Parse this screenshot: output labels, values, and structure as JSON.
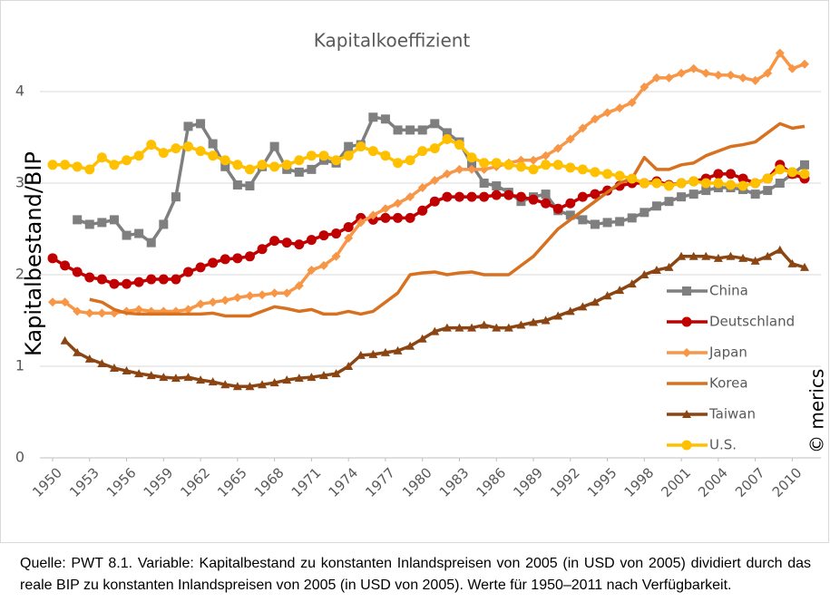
{
  "chart_data": {
    "type": "line",
    "title": "Kapitalkoeffizient",
    "y_label": "Kapitalbestand/BIP",
    "watermark": "© merics",
    "source": "Quelle: PWT 8.1. Variable: Kapitalbestand zu konstanten Inlandspreisen von 2005 (in USD von 2005) dividiert durch das reale BIP zu konstanten Inlandspreisen von 2005 (in USD von 2005). Werte für 1950–2011 nach Verfügbarkeit.",
    "x": [
      1950,
      1951,
      1952,
      1953,
      1954,
      1955,
      1956,
      1957,
      1958,
      1959,
      1960,
      1961,
      1962,
      1963,
      1964,
      1965,
      1966,
      1967,
      1968,
      1969,
      1970,
      1971,
      1972,
      1973,
      1974,
      1975,
      1976,
      1977,
      1978,
      1979,
      1980,
      1981,
      1982,
      1983,
      1984,
      1985,
      1986,
      1987,
      1988,
      1989,
      1990,
      1991,
      1992,
      1993,
      1994,
      1995,
      1996,
      1997,
      1998,
      1999,
      2000,
      2001,
      2002,
      2003,
      2004,
      2005,
      2006,
      2007,
      2008,
      2009,
      2010,
      2011
    ],
    "xlim": [
      1950,
      2011
    ],
    "xticks": [
      1950,
      1953,
      1956,
      1959,
      1962,
      1965,
      1968,
      1971,
      1974,
      1977,
      1980,
      1983,
      1986,
      1989,
      1992,
      1995,
      1998,
      2001,
      2004,
      2007,
      2010
    ],
    "ylim": [
      0,
      4.5
    ],
    "yticks": [
      0,
      1,
      2,
      3,
      4
    ],
    "grid": true,
    "legend": "right",
    "series": [
      {
        "name": "China",
        "color": "#7f7f7f",
        "marker": "square",
        "values": [
          null,
          null,
          2.6,
          2.55,
          2.57,
          2.6,
          2.43,
          2.45,
          2.35,
          2.55,
          2.85,
          3.62,
          3.65,
          3.43,
          3.18,
          2.98,
          2.97,
          3.18,
          3.4,
          3.15,
          3.12,
          3.15,
          3.25,
          3.22,
          3.4,
          3.42,
          3.72,
          3.7,
          3.58,
          3.58,
          3.58,
          3.65,
          3.55,
          3.45,
          3.2,
          3.0,
          2.97,
          2.9,
          2.8,
          2.85,
          2.88,
          2.7,
          2.65,
          2.6,
          2.55,
          2.57,
          2.58,
          2.62,
          2.68,
          2.75,
          2.8,
          2.85,
          2.88,
          2.92,
          2.95,
          2.95,
          2.93,
          2.88,
          2.92,
          3.0,
          3.1,
          3.2
        ]
      },
      {
        "name": "Deutschland",
        "color": "#c00000",
        "marker": "circle",
        "values": [
          2.18,
          2.1,
          2.03,
          1.97,
          1.95,
          1.9,
          1.9,
          1.92,
          1.95,
          1.95,
          1.95,
          2.03,
          2.08,
          2.13,
          2.17,
          2.18,
          2.2,
          2.28,
          2.37,
          2.35,
          2.33,
          2.38,
          2.43,
          2.45,
          2.52,
          2.62,
          2.6,
          2.62,
          2.62,
          2.62,
          2.7,
          2.8,
          2.85,
          2.85,
          2.85,
          2.85,
          2.87,
          2.87,
          2.85,
          2.82,
          2.78,
          2.72,
          2.78,
          2.85,
          2.88,
          2.92,
          2.97,
          3.0,
          3.0,
          3.02,
          2.98,
          3.0,
          3.02,
          3.05,
          3.1,
          3.1,
          3.05,
          3.0,
          3.05,
          3.2,
          3.1,
          3.05
        ]
      },
      {
        "name": "Japan",
        "color": "#f79646",
        "marker": "diamond",
        "values": [
          1.7,
          1.7,
          1.6,
          1.58,
          1.58,
          1.58,
          1.6,
          1.62,
          1.6,
          1.6,
          1.6,
          1.62,
          1.68,
          1.7,
          1.72,
          1.75,
          1.77,
          1.78,
          1.8,
          1.8,
          1.88,
          2.05,
          2.1,
          2.2,
          2.4,
          2.57,
          2.65,
          2.72,
          2.78,
          2.85,
          2.95,
          3.03,
          3.1,
          3.15,
          3.15,
          3.15,
          3.18,
          3.22,
          3.25,
          3.25,
          3.3,
          3.38,
          3.48,
          3.6,
          3.7,
          3.77,
          3.82,
          3.88,
          4.05,
          4.15,
          4.15,
          4.2,
          4.25,
          4.2,
          4.18,
          4.18,
          4.15,
          4.12,
          4.2,
          4.42,
          4.25,
          4.3
        ]
      },
      {
        "name": "Korea",
        "color": "#d8711f",
        "marker": "none",
        "values": [
          null,
          null,
          null,
          1.73,
          1.7,
          1.62,
          1.58,
          1.57,
          1.57,
          1.57,
          1.57,
          1.57,
          1.57,
          1.58,
          1.55,
          1.55,
          1.55,
          1.6,
          1.65,
          1.63,
          1.6,
          1.62,
          1.57,
          1.57,
          1.6,
          1.57,
          1.6,
          1.7,
          1.8,
          2.0,
          2.02,
          2.03,
          2.0,
          2.02,
          2.03,
          2.0,
          2.0,
          2.0,
          2.1,
          2.2,
          2.35,
          2.5,
          2.6,
          2.7,
          2.8,
          2.9,
          3.0,
          3.05,
          3.28,
          3.15,
          3.15,
          3.2,
          3.22,
          3.3,
          3.35,
          3.4,
          3.42,
          3.45,
          3.55,
          3.65,
          3.6,
          3.62
        ]
      },
      {
        "name": "Taiwan",
        "color": "#8b4513",
        "marker": "triangle",
        "values": [
          null,
          1.28,
          1.15,
          1.08,
          1.03,
          0.98,
          0.95,
          0.92,
          0.9,
          0.88,
          0.87,
          0.88,
          0.85,
          0.83,
          0.8,
          0.78,
          0.78,
          0.8,
          0.82,
          0.85,
          0.87,
          0.88,
          0.9,
          0.92,
          1.0,
          1.12,
          1.13,
          1.15,
          1.17,
          1.22,
          1.3,
          1.38,
          1.42,
          1.42,
          1.42,
          1.45,
          1.42,
          1.42,
          1.45,
          1.48,
          1.5,
          1.55,
          1.6,
          1.65,
          1.7,
          1.77,
          1.83,
          1.9,
          2.0,
          2.05,
          2.08,
          2.2,
          2.2,
          2.2,
          2.18,
          2.2,
          2.18,
          2.15,
          2.2,
          2.27,
          2.12,
          2.08
        ]
      },
      {
        "name": "U.S.",
        "color": "#ffc000",
        "marker": "circle",
        "values": [
          3.2,
          3.2,
          3.18,
          3.15,
          3.28,
          3.2,
          3.25,
          3.3,
          3.42,
          3.33,
          3.38,
          3.4,
          3.35,
          3.3,
          3.25,
          3.2,
          3.15,
          3.2,
          3.18,
          3.2,
          3.25,
          3.3,
          3.3,
          3.25,
          3.3,
          3.4,
          3.35,
          3.3,
          3.22,
          3.25,
          3.35,
          3.38,
          3.48,
          3.42,
          3.28,
          3.22,
          3.22,
          3.2,
          3.18,
          3.15,
          3.2,
          3.2,
          3.17,
          3.15,
          3.12,
          3.1,
          3.08,
          3.05,
          3.0,
          3.0,
          2.97,
          3.0,
          3.02,
          3.0,
          3.0,
          2.98,
          2.97,
          3.0,
          3.05,
          3.15,
          3.12,
          3.1
        ]
      }
    ]
  }
}
